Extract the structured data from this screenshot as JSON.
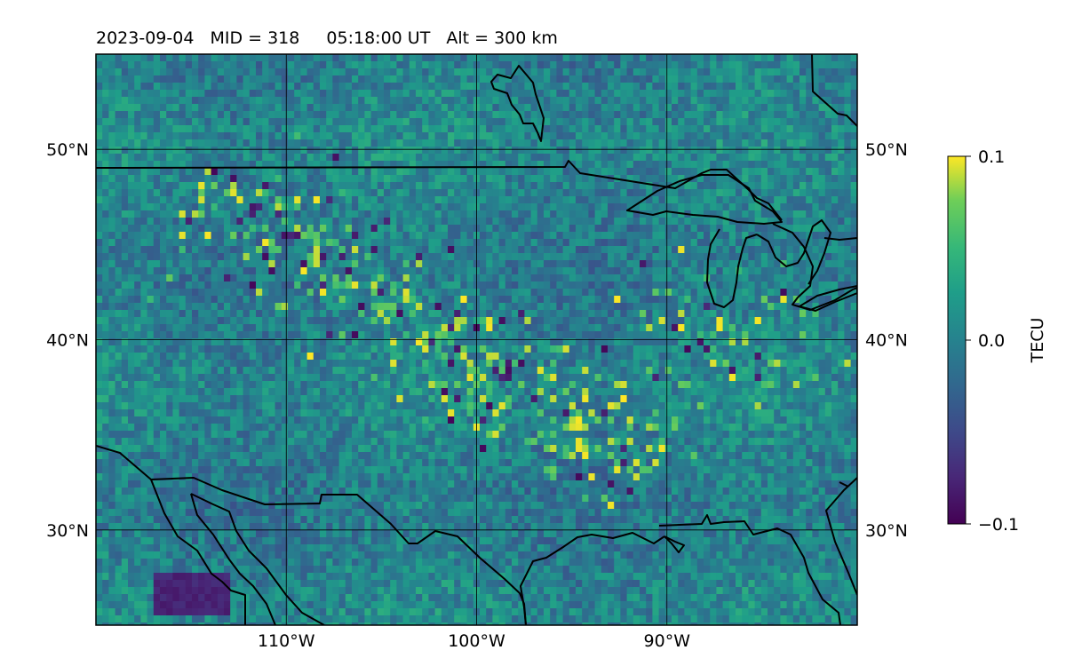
{
  "title": {
    "date": "2023-09-04",
    "mid": "MID = 318",
    "time": "05:18:00  UT",
    "alt": "Alt = 300 km"
  },
  "map": {
    "lon_range": [
      -120,
      -80
    ],
    "lat_range": [
      25,
      55
    ],
    "grid": true,
    "lon_ticks": [
      {
        "value": -110,
        "label": "110°W"
      },
      {
        "value": -100,
        "label": "100°W"
      },
      {
        "value": -90,
        "label": "90°W"
      }
    ],
    "lat_ticks": [
      {
        "value": 50,
        "label": "50°N"
      },
      {
        "value": 40,
        "label": "40°N"
      },
      {
        "value": 30,
        "label": "30°N"
      }
    ],
    "field": "pixelated TEC perturbation map, mostly near 0 TECU with scattered yellow (+0.1) and purple (-0.1) cells, concentrated along a band from Montana to Texas and in the Great Lakes region"
  },
  "colorbar": {
    "label": "TECU",
    "colormap": "viridis",
    "min": -0.1,
    "max": 0.1,
    "ticks": [
      {
        "value": 0.1,
        "label": "0.1"
      },
      {
        "value": 0.0,
        "label": "0.0"
      },
      {
        "value": -0.1,
        "label": "−0.1"
      }
    ]
  },
  "colors": {
    "viridis_low": "#440154",
    "viridis_mid": "#21918c",
    "viridis_high": "#fde725",
    "coastline": "#000000",
    "grid": "#000000"
  }
}
